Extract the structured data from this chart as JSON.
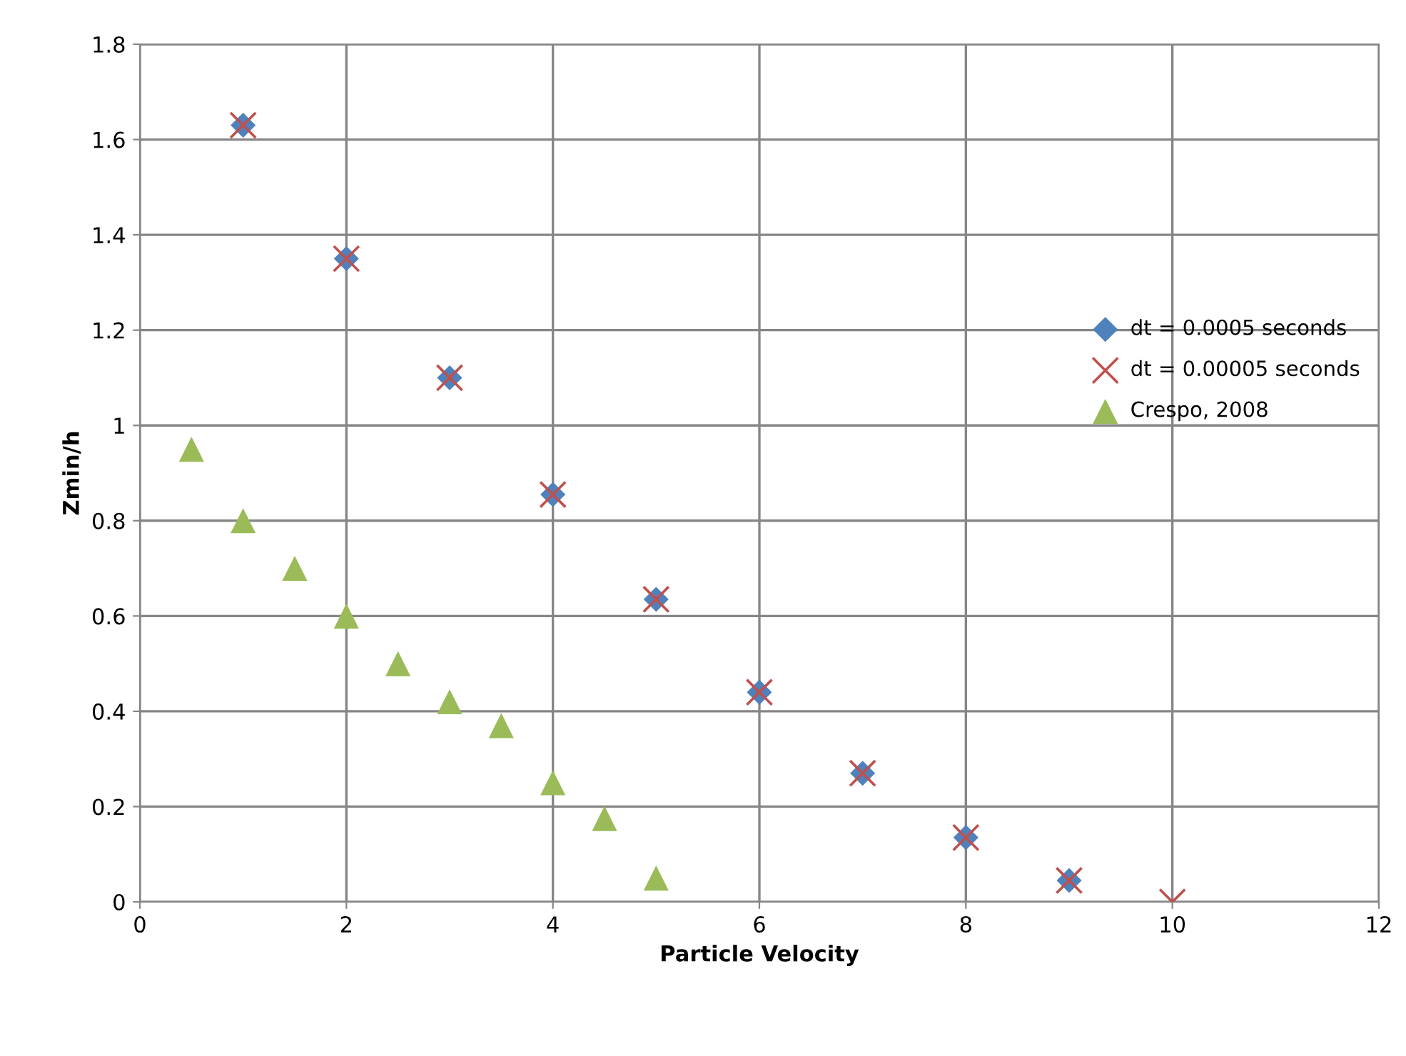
{
  "chart_data": {
    "type": "scatter",
    "xlabel": "Particle Velocity",
    "ylabel": "Zmin/h",
    "series": [
      {
        "name": "dt = 0.0005 seconds",
        "color": "#4f81bd",
        "marker": "diamond",
        "x": [
          1,
          2,
          3,
          4,
          5,
          6,
          7,
          8,
          9
        ],
        "values": [
          1.63,
          1.35,
          1.1,
          0.855,
          0.635,
          0.44,
          0.27,
          0.135,
          0.045
        ]
      },
      {
        "name": "dt = 0.00005 seconds",
        "color": "#c0504d",
        "marker": "cross",
        "x": [
          1,
          2,
          3,
          4,
          5,
          6,
          7,
          8,
          9,
          10
        ],
        "values": [
          1.63,
          1.35,
          1.1,
          0.855,
          0.635,
          0.44,
          0.27,
          0.135,
          0.045,
          0
        ]
      },
      {
        "name": "Crespo, 2008",
        "color": "#9bbb59",
        "marker": "triangle",
        "x": [
          0.5,
          1,
          1.5,
          2,
          2.5,
          3,
          3.5,
          4,
          4.5,
          5
        ],
        "values": [
          0.95,
          0.8,
          0.7,
          0.6,
          0.5,
          0.42,
          0.37,
          0.25,
          0.175,
          0.05
        ]
      }
    ],
    "xlim": [
      0,
      12
    ],
    "xticks": [
      0,
      2,
      4,
      6,
      8,
      10,
      12
    ],
    "ylim": [
      0,
      1.8
    ],
    "yticks": [
      0,
      0.2,
      0.4,
      0.6,
      0.8,
      1,
      1.2,
      1.4,
      1.6,
      1.8
    ],
    "grid": true,
    "legend": "right"
  }
}
